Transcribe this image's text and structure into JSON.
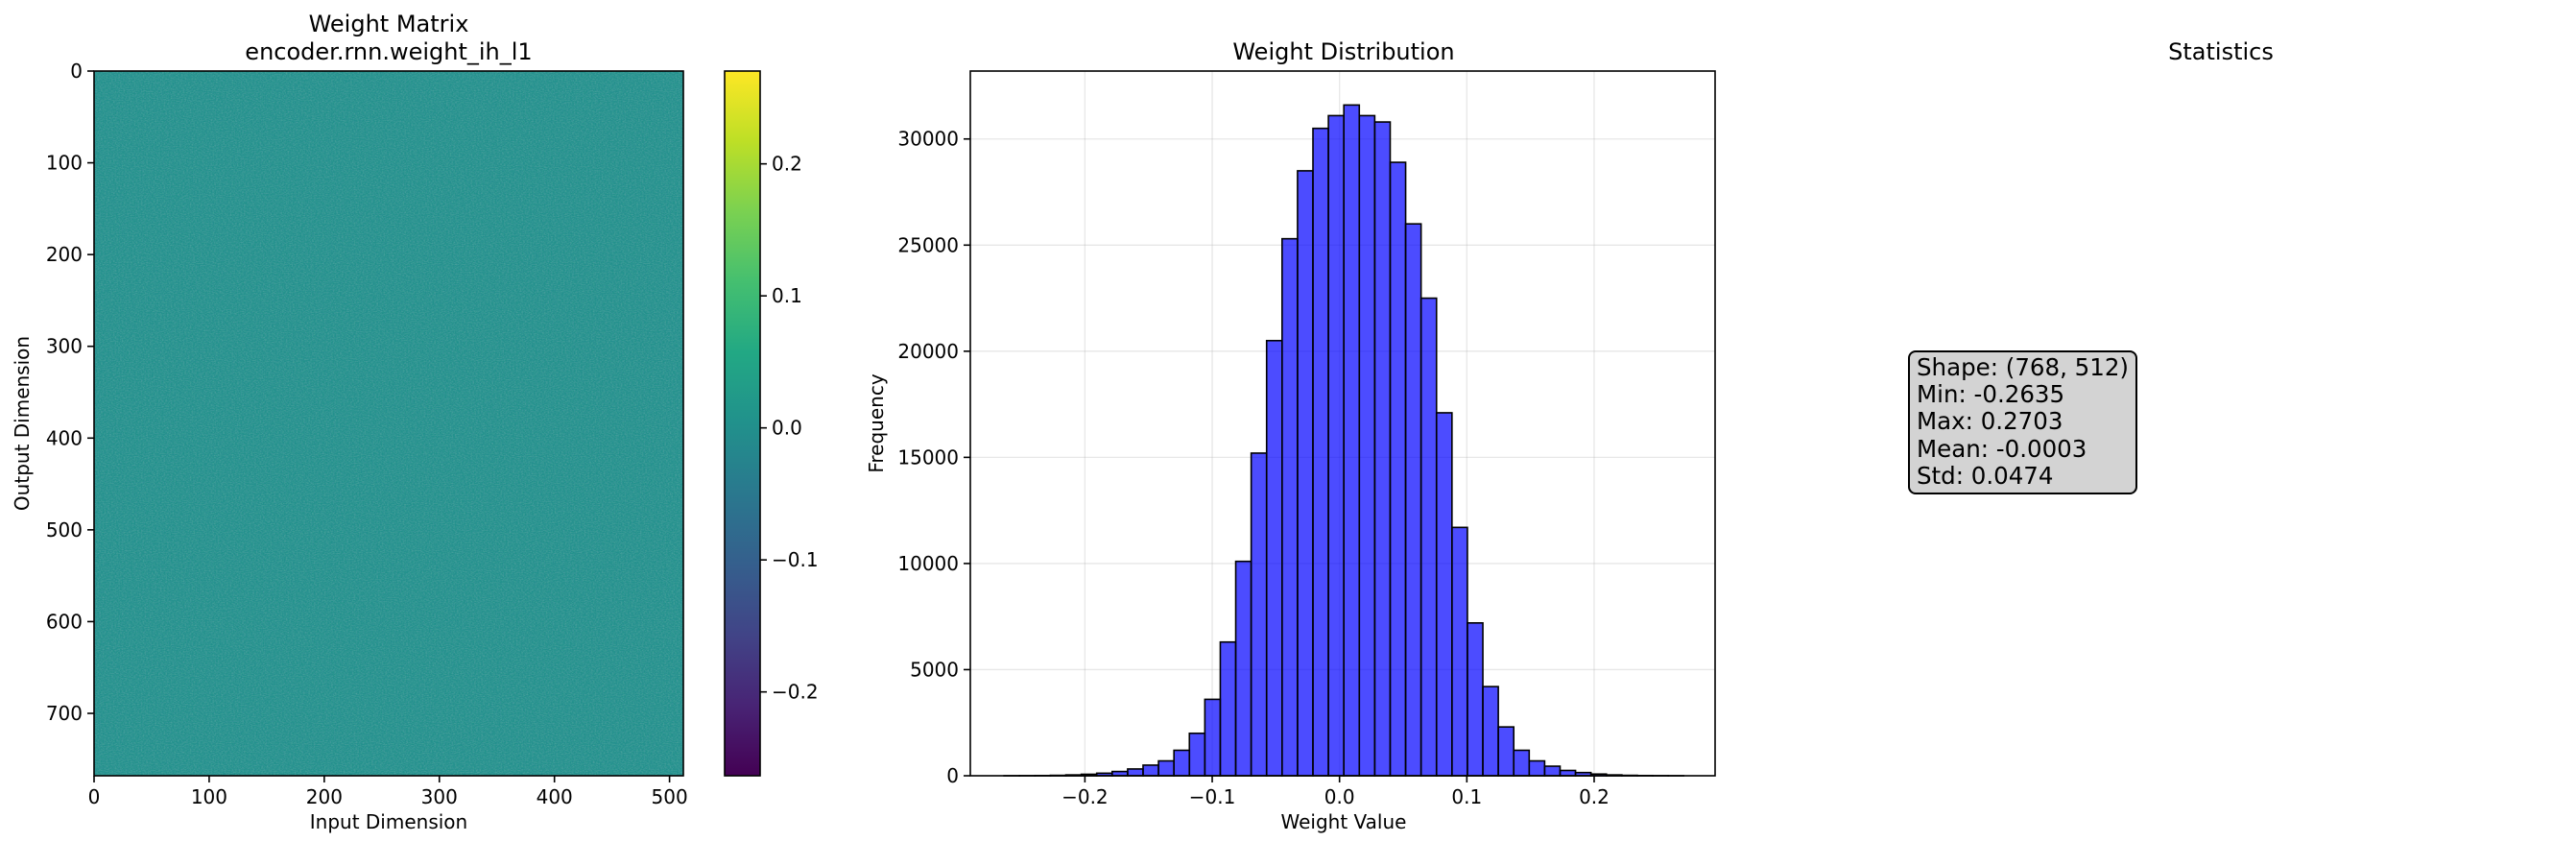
{
  "panels": {
    "matrix": {
      "title_line1": "Weight Matrix",
      "title_line2": "encoder.rnn.weight_ih_l1",
      "xlabel": "Input Dimension",
      "ylabel": "Output Dimension",
      "colormap": "viridis",
      "color_range": [
        -0.2635,
        0.2703
      ],
      "colorbar_ticks": [
        "0.2",
        "0.1",
        "0.0",
        "−0.1",
        "−0.2"
      ],
      "x_ticks": [
        "0",
        "100",
        "200",
        "300",
        "400",
        "500"
      ],
      "y_ticks": [
        "0",
        "100",
        "200",
        "300",
        "400",
        "500",
        "600",
        "700"
      ]
    },
    "stats": {
      "title": "Statistics",
      "lines": [
        "Shape: (768, 512)",
        "Min: -0.2635",
        "Max: 0.2703",
        "Mean: -0.0003",
        "Std: 0.0474"
      ]
    }
  },
  "chart_data": [
    {
      "type": "heatmap",
      "title": "Weight Matrix\nencoder.rnn.weight_ih_l1",
      "xlabel": "Input Dimension",
      "ylabel": "Output Dimension",
      "shape": [
        768,
        512
      ],
      "xlim": [
        0,
        512
      ],
      "ylim": [
        768,
        0
      ],
      "x_ticks": [
        0,
        100,
        200,
        300,
        400,
        500
      ],
      "y_ticks": [
        0,
        100,
        200,
        300,
        400,
        500,
        600,
        700
      ],
      "colorbar_ticks": [
        -0.2,
        -0.1,
        0.0,
        0.1,
        0.2
      ],
      "vmin": -0.2635,
      "vmax": 0.2703,
      "colormap": "viridis"
    },
    {
      "type": "bar",
      "title": "Weight Distribution",
      "xlabel": "Weight Value",
      "ylabel": "Frequency",
      "color": "#0000ff",
      "edgecolor": "#000000",
      "xlim": [
        -0.29,
        0.295
      ],
      "ylim": [
        0,
        33200
      ],
      "grid": true,
      "x_ticks": [
        "−0.2",
        "−0.1",
        "0.0",
        "0.1",
        "0.2"
      ],
      "y_ticks": [
        "0",
        "5000",
        "10000",
        "15000",
        "20000",
        "25000",
        "30000"
      ],
      "bin_range": [
        -0.2635,
        0.2703
      ],
      "values": [
        2,
        5,
        10,
        20,
        40,
        70,
        120,
        200,
        320,
        500,
        700,
        1200,
        2000,
        3600,
        6300,
        10100,
        15200,
        20500,
        25300,
        28500,
        30500,
        31100,
        31600,
        31100,
        30800,
        28900,
        26000,
        22500,
        17100,
        11700,
        7200,
        4200,
        2300,
        1200,
        700,
        450,
        250,
        150,
        80,
        40,
        20,
        10,
        5,
        2
      ]
    }
  ]
}
